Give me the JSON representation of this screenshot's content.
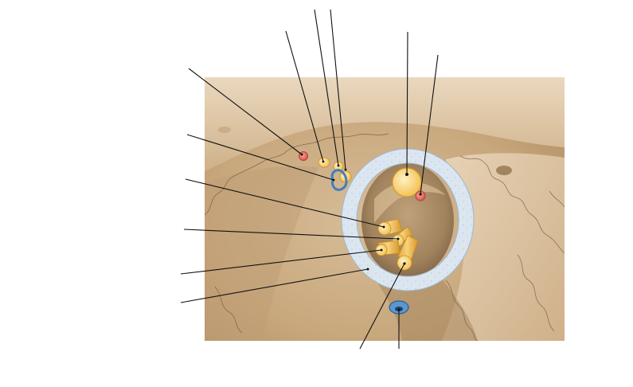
{
  "diagram": {
    "type": "unlabeled anatomical figure",
    "label_text": [],
    "leader_line_count": 14,
    "colors": {
      "background": "#ffffff",
      "bone_light": "#e3cdb0",
      "bone_mid": "#c9a77d",
      "bone_dark": "#8e6e47",
      "dura_ring_fill": "#dbe6f0",
      "dura_ring_edge": "#9fb6cc",
      "nerve": "#f2c258",
      "nerve_dark": "#c98d1f",
      "artery": "#d9574c",
      "vein": "#3f7fbf",
      "leader_line": "#111111",
      "suture": "#6e5a43"
    },
    "structures": [
      {
        "name": "artery-upper-left",
        "color_key": "artery"
      },
      {
        "name": "nerve-small-upper",
        "color_key": "nerve"
      },
      {
        "name": "nerve-pair-upper",
        "color_key": "nerve"
      },
      {
        "name": "vein-loop-upper",
        "color_key": "vein"
      },
      {
        "name": "nerve-large-ring",
        "color_key": "nerve"
      },
      {
        "name": "artery-in-ring",
        "color_key": "artery"
      },
      {
        "name": "nerve-bundle-lower",
        "color_key": "nerve"
      },
      {
        "name": "vein-below-ring",
        "color_key": "vein"
      },
      {
        "name": "dural-ring",
        "color_key": "dura_ring_fill"
      }
    ]
  }
}
